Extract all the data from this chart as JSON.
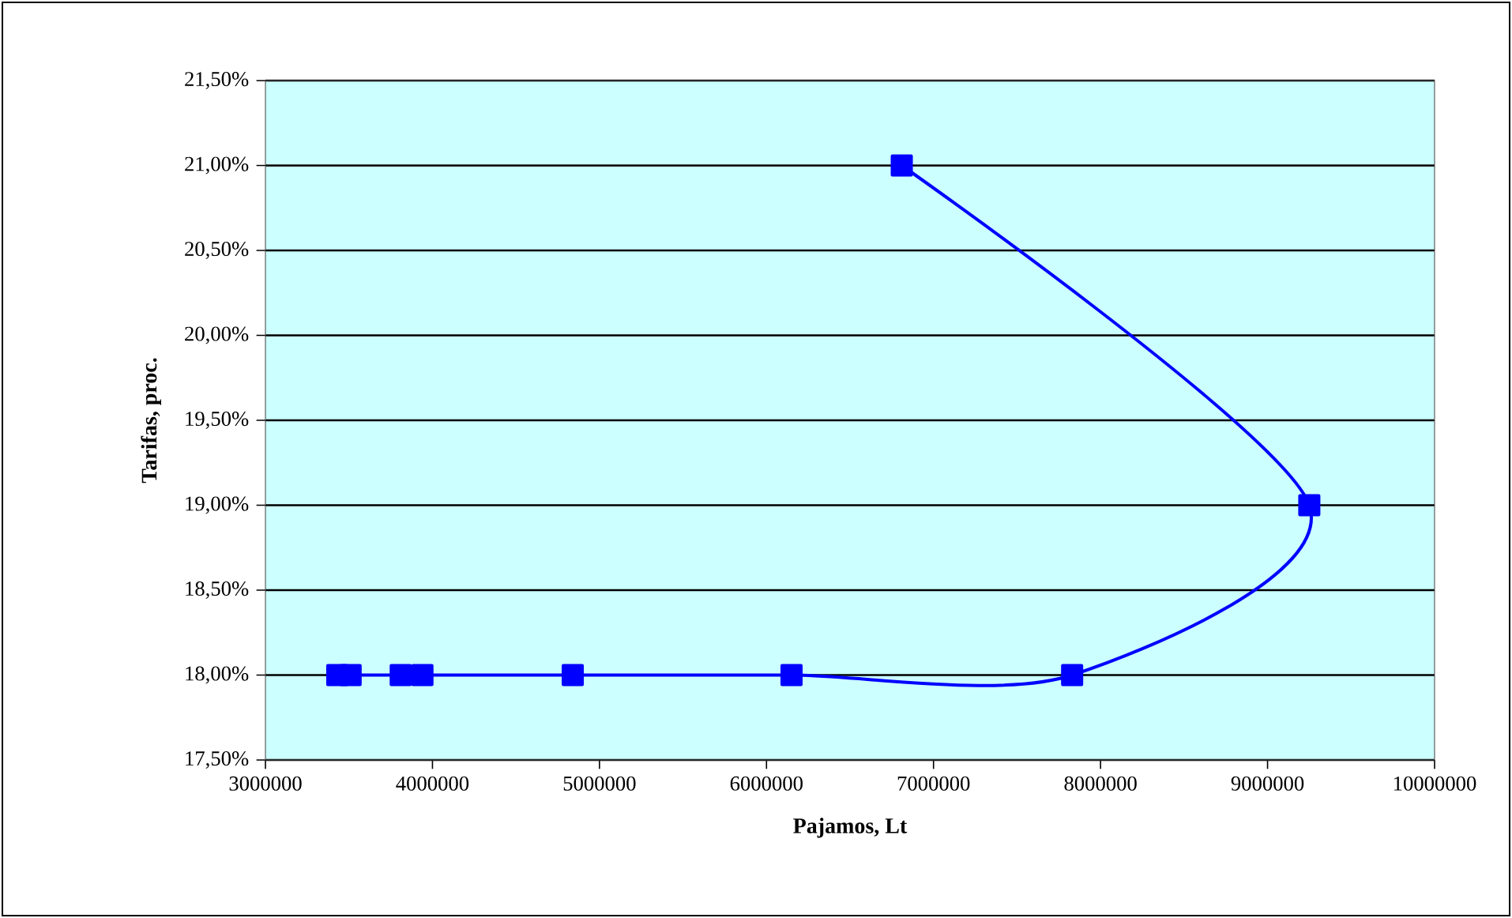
{
  "chart_data": {
    "type": "line",
    "xlabel": "Pajamos, Lt",
    "ylabel": "Tarifas, proc.",
    "x": [
      3430000,
      3510000,
      3810000,
      3940000,
      4840000,
      6150000,
      7830000,
      9250000,
      6810000
    ],
    "values": [
      18,
      18,
      18,
      18,
      18,
      18,
      18,
      19,
      21
    ],
    "color": "#0000ff",
    "marker": "square",
    "grid": "y",
    "xlim": [
      3000000,
      10000000
    ],
    "xticks": [
      3000000,
      4000000,
      5000000,
      6000000,
      7000000,
      8000000,
      9000000,
      10000000
    ],
    "ylim": [
      17.5,
      21.5
    ],
    "yticks": [
      {
        "value": 17.5,
        "label": "17,50%"
      },
      {
        "value": 18,
        "label": "18,00%"
      },
      {
        "value": 18.5,
        "label": "18,50%"
      },
      {
        "value": 19,
        "label": "19,00%"
      },
      {
        "value": 19.5,
        "label": "19,50%"
      },
      {
        "value": 20,
        "label": "20,00%"
      },
      {
        "value": 20.5,
        "label": "20,50%"
      },
      {
        "value": 21,
        "label": "21,00%"
      },
      {
        "value": 21.5,
        "label": "21,50%"
      }
    ]
  }
}
